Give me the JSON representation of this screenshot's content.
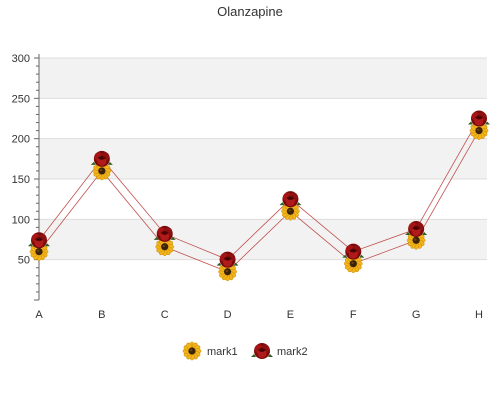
{
  "chart_data": {
    "type": "line",
    "title": "Olanzapine",
    "categories": [
      "A",
      "B",
      "C",
      "D",
      "E",
      "F",
      "G",
      "H"
    ],
    "series": [
      {
        "name": "mark1",
        "values": [
          60,
          160,
          66,
          35,
          110,
          45,
          74,
          210
        ],
        "marker": "sunflower-icon",
        "color": "#c0504d"
      },
      {
        "name": "mark2",
        "values": [
          74,
          175,
          82,
          50,
          125,
          60,
          88,
          225
        ],
        "marker": "rose-icon",
        "color": "#c0504d"
      }
    ],
    "ylim": [
      0,
      300
    ],
    "yticks": [
      50,
      100,
      150,
      200,
      250,
      300
    ],
    "grid": true,
    "legend": "bottom",
    "colors": {
      "band": "#f2f2f2",
      "gridline": "#dddddd",
      "axis": "#666666",
      "line": "#c0504d"
    }
  }
}
